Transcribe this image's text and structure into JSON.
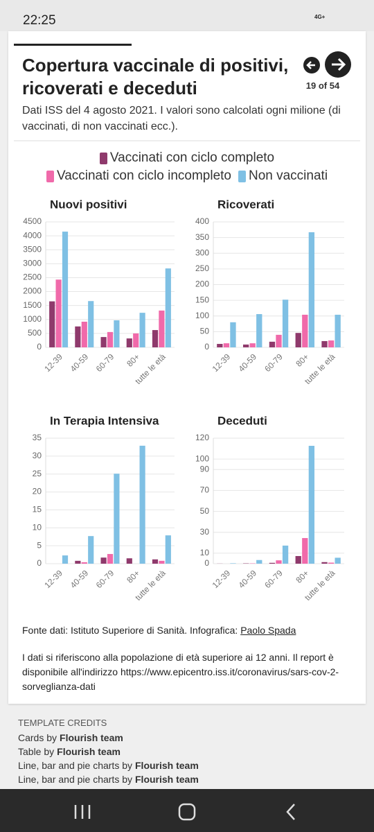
{
  "status_bar": {
    "time": "22:25",
    "network": "4G+"
  },
  "header": {
    "title": "Copertura vaccinale di positivi, ricoverati e deceduti",
    "pager": "19 of 54",
    "subtitle": "Dati ISS del 4 agosto 2021. I valori sono calcolati ogni milione (di vaccinati, di non vaccinati ecc.)."
  },
  "chart_data": [
    {
      "type": "bar",
      "title": "Nuovi positivi",
      "categories": [
        "12-39",
        "40-59",
        "60-79",
        "80+",
        "tutte le età"
      ],
      "ylim": [
        0,
        4500
      ],
      "yticks": [
        0,
        500,
        1000,
        1500,
        2000,
        2500,
        3000,
        3500,
        4000,
        4500
      ],
      "grid": true,
      "series": [
        {
          "name": "Vaccinati con ciclo completo",
          "color": "#8f3a6c",
          "values": [
            1650,
            750,
            370,
            320,
            620
          ]
        },
        {
          "name": "Vaccinati con ciclo incompleto",
          "color": "#f06aaa",
          "values": [
            2430,
            920,
            550,
            500,
            1320
          ]
        },
        {
          "name": "Non vaccinati",
          "color": "#7fc0e4",
          "values": [
            4150,
            1660,
            970,
            1240,
            2830
          ]
        }
      ]
    },
    {
      "type": "bar",
      "title": "Ricoverati",
      "categories": [
        "12-39",
        "40-59",
        "60-79",
        "80+",
        "tutte le età"
      ],
      "ylim": [
        0,
        400
      ],
      "yticks": [
        0,
        50,
        100,
        150,
        200,
        250,
        300,
        350,
        400
      ],
      "grid": true,
      "series": [
        {
          "name": "Vaccinati con ciclo completo",
          "color": "#8f3a6c",
          "values": [
            11,
            9,
            18,
            46,
            20
          ]
        },
        {
          "name": "Vaccinati con ciclo incompleto",
          "color": "#f06aaa",
          "values": [
            13,
            13,
            40,
            104,
            22
          ]
        },
        {
          "name": "Non vaccinati",
          "color": "#7fc0e4",
          "values": [
            80,
            106,
            152,
            367,
            104
          ]
        }
      ]
    },
    {
      "type": "bar",
      "title": "In Terapia Intensiva",
      "categories": [
        "12-39",
        "40-59",
        "60-79",
        "80+",
        "tutte le età"
      ],
      "ylim": [
        0,
        35
      ],
      "yticks": [
        0,
        5,
        10,
        15,
        20,
        25,
        30,
        35
      ],
      "grid": true,
      "series": [
        {
          "name": "Vaccinati con ciclo completo",
          "color": "#8f3a6c",
          "values": [
            0,
            0.8,
            1.7,
            1.5,
            1.2
          ]
        },
        {
          "name": "Vaccinati con ciclo incompleto",
          "color": "#f06aaa",
          "values": [
            0,
            0.4,
            2.7,
            0,
            0.8
          ]
        },
        {
          "name": "Non vaccinati",
          "color": "#7fc0e4",
          "values": [
            2.3,
            7.7,
            25.1,
            32.9,
            7.9
          ]
        }
      ]
    },
    {
      "type": "bar",
      "title": "Deceduti",
      "categories": [
        "12-39",
        "40-59",
        "60-79",
        "80+",
        "tutte le età"
      ],
      "ylim": [
        0,
        120
      ],
      "yticks": [
        0,
        10,
        30,
        50,
        70,
        90,
        100,
        120
      ],
      "grid": true,
      "series": [
        {
          "name": "Vaccinati con ciclo completo",
          "color": "#8f3a6c",
          "values": [
            0.1,
            0.3,
            0.8,
            7.3,
            1.5
          ]
        },
        {
          "name": "Vaccinati con ciclo incompleto",
          "color": "#f06aaa",
          "values": [
            0,
            0.3,
            3.2,
            24.5,
            1
          ]
        },
        {
          "name": "Non vaccinati",
          "color": "#7fc0e4",
          "values": [
            0.4,
            3.5,
            17.3,
            112.7,
            5.7
          ]
        }
      ]
    }
  ],
  "footer": {
    "source": "Fonte dati: Istituto Superiore di Sanità. Infografica:",
    "author": "Paolo Spada",
    "note": "I dati si riferiscono alla popolazione di età superiore ai 12 anni. Il report è disponibile all'indirizzo https://www.epicentro.iss.it/coronavirus/sars-cov-2-sorveglianza-dati"
  },
  "credits": {
    "heading": "TEMPLATE CREDITS",
    "items": [
      {
        "text": "Cards by",
        "author": "Flourish team"
      },
      {
        "text": "Table by",
        "author": "Flourish team"
      },
      {
        "text": "Line, bar and pie charts by",
        "author": "Flourish team"
      },
      {
        "text": "Line, bar and pie charts by",
        "author": "Flourish team"
      }
    ]
  }
}
